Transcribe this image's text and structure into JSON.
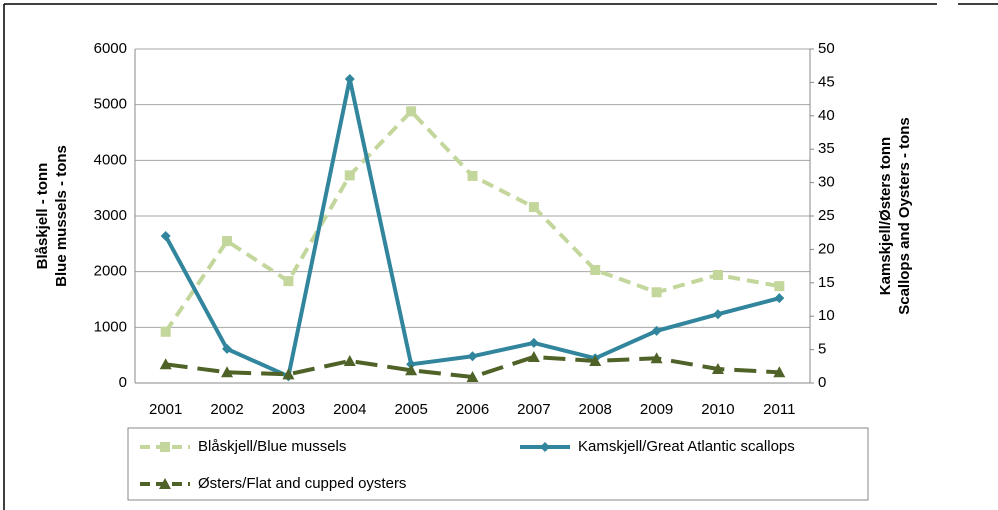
{
  "chart_data": {
    "type": "line",
    "categories": [
      "2001",
      "2002",
      "2003",
      "2004",
      "2005",
      "2006",
      "2007",
      "2008",
      "2009",
      "2010",
      "2011"
    ],
    "ylabel": [
      "Blåskjell - tonn",
      "Blue mussels - tons"
    ],
    "y2label": [
      "Kamskjell/Østers tonn",
      "Scallops and Oysters - tons"
    ],
    "ylim": [
      0,
      6000
    ],
    "yticks": [
      0,
      1000,
      2000,
      3000,
      4000,
      5000,
      6000
    ],
    "y2lim": [
      0,
      50
    ],
    "y2ticks": [
      0,
      5,
      10,
      15,
      20,
      25,
      30,
      35,
      40,
      45,
      50
    ],
    "grid": true,
    "series": [
      {
        "name": "Blåskjell/Blue mussels",
        "color": "#c3d69b",
        "marker": "square",
        "dash": "dashed",
        "values": [
          920,
          2550,
          1830,
          3730,
          4880,
          3720,
          3160,
          2030,
          1630,
          1940,
          1740
        ]
      },
      {
        "name": "Kamskjell/Great Atlantic scallops",
        "color": "#31859c",
        "marker": "diamond",
        "dash": "solid",
        "axis": "y2",
        "values": [
          22.0,
          5.1,
          1.0,
          45.5,
          2.8,
          4.0,
          6.0,
          3.7,
          7.8,
          10.3,
          12.7
        ]
      },
      {
        "name": "Østers/Flat and cupped oysters",
        "color": "#4f6228",
        "marker": "triangle",
        "dash": "long-dash",
        "axis": "y2",
        "values": [
          2.8,
          1.6,
          1.3,
          3.3,
          1.9,
          0.9,
          3.9,
          3.3,
          3.7,
          2.1,
          1.6
        ]
      }
    ]
  }
}
